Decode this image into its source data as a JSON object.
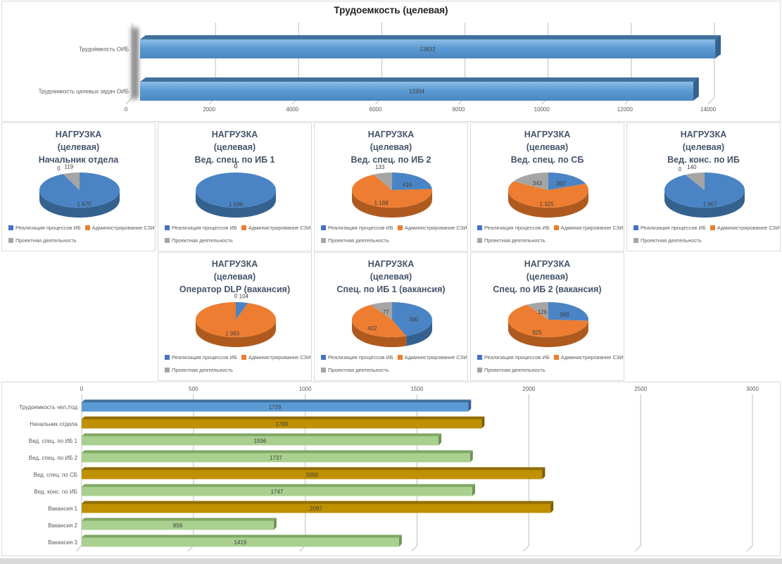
{
  "palette": {
    "pie_blue": "#4A84C4",
    "pie_blue_dark": "#35618F",
    "pie_orange": "#ED7D31",
    "pie_orange_dark": "#AE5A1F",
    "pie_gray": "#A5A5A5",
    "pie_gray_dark": "#7D7D7D",
    "marker_blue": "#4472C4",
    "marker_orange": "#ED7D31",
    "marker_gray": "#A5A5A5",
    "bar_blue_front": "#5B9BD5",
    "bar_blue_top": "#41719C",
    "bar_blue_side": "#35618F",
    "bar_gold_front": "#BF9000",
    "bar_gold_top": "#8F6C00",
    "bar_gold_side": "#7A5C00",
    "bar_green_front": "#A9D08E",
    "bar_green_top": "#7FA865",
    "bar_green_side": "#6F9457",
    "gridline": "#BFBFBF",
    "axis_text": "#595959",
    "value_text": "#404040",
    "pie_title_color": "#44546A",
    "panel_border": "#D9D9D9"
  },
  "pie_legend": {
    "items": [
      {
        "label": "Реализация процессов ИБ",
        "color": "#4472C4"
      },
      {
        "label": "Администрирование СЗИ",
        "color": "#ED7D31"
      },
      {
        "label": "Проектная деятельность",
        "color": "#A5A5A5"
      }
    ]
  },
  "chart_data": [
    {
      "id": "effort-total",
      "type": "bar",
      "orientation": "horizontal",
      "title": "Трудоемкость (целевая)",
      "categories": [
        "Трудоёмкость ОИБ",
        "Трудоемкость целевых задач ОИБ"
      ],
      "values": [
        13832,
        13304
      ],
      "value_labels": [
        "13832",
        "13304"
      ],
      "xlim": [
        0,
        14000
      ],
      "ticks": [
        "0",
        "2000",
        "4000",
        "6000",
        "8000",
        "10000",
        "12000",
        "14000"
      ],
      "grid": true,
      "legend": "none",
      "bar_colors": [
        "blue",
        "blue"
      ]
    },
    {
      "id": "pie-head-of-dept",
      "type": "pie",
      "row": 1,
      "col": 1,
      "title_lines": [
        "НАГРУЗКА",
        "(целевая)",
        "Начальник отдела"
      ],
      "labels": [
        "Реализация процессов ИБ",
        "Администрирование СЗИ",
        "Проектная деятельность"
      ],
      "values": [
        1670,
        0,
        119
      ],
      "value_labels": [
        "1 670",
        "0",
        "119"
      ]
    },
    {
      "id": "pie-lead-spec-ib1",
      "type": "pie",
      "row": 1,
      "col": 2,
      "title_lines": [
        "НАГРУЗКА",
        "(целевая)",
        "Вед. спец. по ИБ 1"
      ],
      "labels": [
        "Реализация процессов ИБ",
        "Администрирование СЗИ",
        "Проектная деятельность"
      ],
      "values": [
        1596,
        0,
        0
      ],
      "value_labels": [
        "1 596",
        "0",
        "0"
      ]
    },
    {
      "id": "pie-lead-spec-ib2",
      "type": "pie",
      "row": 1,
      "col": 3,
      "title_lines": [
        "НАГРУЗКА",
        "(целевая)",
        "Вед. спец. по ИБ 2"
      ],
      "labels": [
        "Реализация процессов ИБ",
        "Администрирование СЗИ",
        "Проектная деятельность"
      ],
      "values": [
        416,
        1188,
        133
      ],
      "value_labels": [
        "416",
        "1 188",
        "133"
      ]
    },
    {
      "id": "pie-lead-spec-sb",
      "type": "pie",
      "row": 1,
      "col": 4,
      "title_lines": [
        "НАГРУЗКА",
        "(целевая)",
        "Вед. спец. по СБ"
      ],
      "labels": [
        "Реализация процессов ИБ",
        "Администрирование СЗИ",
        "Проектная деятельность"
      ],
      "values": [
        392,
        1325,
        343
      ],
      "value_labels": [
        "392",
        "1 325",
        "343"
      ]
    },
    {
      "id": "pie-lead-cons-ib",
      "type": "pie",
      "row": 1,
      "col": 5,
      "title_lines": [
        "НАГРУЗКА",
        "(целевая)",
        "Вед. конс. по ИБ"
      ],
      "labels": [
        "Реализация процессов ИБ",
        "Администрирование СЗИ",
        "Проектная деятельность"
      ],
      "values": [
        1607,
        0,
        140
      ],
      "value_labels": [
        "1 607",
        "0",
        "140"
      ]
    },
    {
      "id": "pie-dlp-operator",
      "type": "pie",
      "row": 2,
      "col": 2,
      "title_lines": [
        "НАГРУЗКА",
        "(целевая)",
        "Оператор DLP (вакансия)"
      ],
      "labels": [
        "Реализация процессов ИБ",
        "Администрирование СЗИ",
        "Проектная деятельность"
      ],
      "values": [
        104,
        1993,
        0
      ],
      "value_labels": [
        "104",
        "1 993",
        "0"
      ]
    },
    {
      "id": "pie-spec-ib1-vacancy",
      "type": "pie",
      "row": 2,
      "col": 3,
      "title_lines": [
        "НАГРУЗКА",
        "(целевая)",
        "Спец. по ИБ 1 (вакансия)"
      ],
      "labels": [
        "Реализация процессов ИБ",
        "Администрирование СЗИ",
        "Проектная деятельность"
      ],
      "values": [
        380,
        402,
        77
      ],
      "value_labels": [
        "380",
        "402",
        "77"
      ]
    },
    {
      "id": "pie-spec-ib2-vacancy",
      "type": "pie",
      "row": 2,
      "col": 4,
      "title_lines": [
        "НАГРУЗКА",
        "(целевая)",
        "Спец. по ИБ 2 (вакансия)"
      ],
      "labels": [
        "Реализация процессов ИБ",
        "Администрирование СЗИ",
        "Проектная деятельность"
      ],
      "values": [
        368,
        925,
        126
      ],
      "value_labels": [
        "368",
        "925",
        "126"
      ]
    },
    {
      "id": "effort-per-person",
      "type": "bar",
      "orientation": "horizontal",
      "title": "",
      "categories": [
        "Трудоемкость чел./год",
        "Начальник отдела",
        "Вед. спец. по ИБ 1",
        "Вед. спец. по ИБ 2",
        "Вед. спец. по СБ",
        "Вед. конс. по ИБ",
        "Вакансия 1",
        "Вакансия 2",
        "Вакансия 3"
      ],
      "values": [
        1729,
        1789,
        1596,
        1737,
        2060,
        1747,
        2097,
        859,
        1419
      ],
      "value_labels": [
        "1729",
        "1789",
        "1596",
        "1737",
        "2060",
        "1747",
        "2097",
        "859",
        "1419"
      ],
      "xlim": [
        0,
        3000
      ],
      "ticks": [
        "0",
        "500",
        "1000",
        "1500",
        "2000",
        "2500",
        "3000"
      ],
      "grid": true,
      "legend": "none",
      "bar_colors": [
        "blue",
        "gold",
        "green",
        "green",
        "gold",
        "green",
        "gold",
        "green",
        "green"
      ]
    }
  ]
}
